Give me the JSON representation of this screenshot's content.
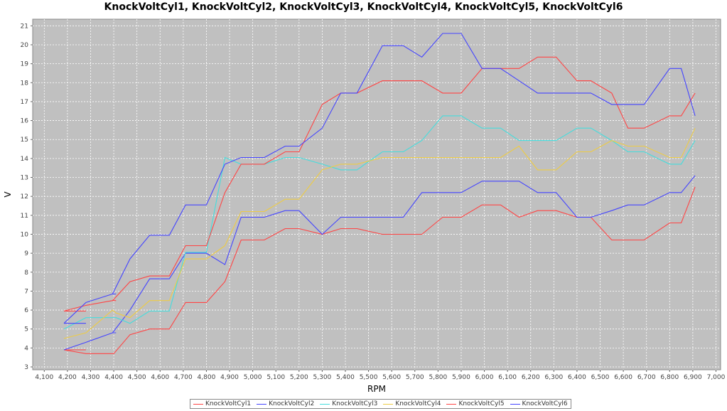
{
  "chart_data": {
    "type": "line",
    "title": "KnockVoltCyl1, KnockVoltCyl2, KnockVoltCyl3, KnockVoltCyl4, KnockVoltCyl5, KnockVoltCyl6",
    "xlabel": "RPM",
    "ylabel": "V",
    "xlim": [
      4050,
      7020
    ],
    "ylim": [
      2.85,
      21.35
    ],
    "xticks": [
      4100,
      4200,
      4300,
      4400,
      4500,
      4600,
      4700,
      4800,
      4900,
      5000,
      5100,
      5200,
      5300,
      5400,
      5500,
      5600,
      5700,
      5800,
      5900,
      6000,
      6100,
      6200,
      6300,
      6400,
      6500,
      6600,
      6700,
      6800,
      6900,
      7000
    ],
    "xtick_labels": [
      "4,100",
      "4,200",
      "4,300",
      "4,400",
      "4,500",
      "4,600",
      "4,700",
      "4,800",
      "4,900",
      "5,000",
      "5,100",
      "5,200",
      "5,300",
      "5,400",
      "5,500",
      "5,600",
      "5,700",
      "5,800",
      "5,900",
      "6,000",
      "6,100",
      "6,200",
      "6,300",
      "6,400",
      "6,500",
      "6,600",
      "6,700",
      "6,800",
      "6,900",
      "7,000"
    ],
    "yticks": [
      3,
      4,
      5,
      6,
      7,
      8,
      9,
      10,
      11,
      12,
      13,
      14,
      15,
      16,
      17,
      18,
      19,
      20,
      21
    ],
    "grid": true,
    "legend_position": "bottom",
    "background": "#c0c0c0",
    "series": [
      {
        "name": "KnockVoltCyl1",
        "color": "#ff4444",
        "points": [
          [
            4185,
            3.9
          ],
          [
            4280,
            3.9
          ]
        ]
      },
      {
        "name": "KnockVoltCyl1",
        "color": "#ff4444",
        "points": [
          [
            4185,
            3.9
          ],
          [
            4280,
            3.7
          ],
          [
            4400,
            3.7
          ],
          [
            4470,
            4.7
          ],
          [
            4555,
            5.0
          ],
          [
            4640,
            5.0
          ],
          [
            4710,
            6.4
          ],
          [
            4800,
            6.4
          ],
          [
            4880,
            7.5
          ],
          [
            4950,
            9.7
          ],
          [
            5050,
            9.7
          ],
          [
            5140,
            10.3
          ],
          [
            5200,
            10.3
          ],
          [
            5300,
            10.0
          ],
          [
            5380,
            10.3
          ],
          [
            5450,
            10.3
          ],
          [
            5560,
            10.0
          ],
          [
            5650,
            10.0
          ],
          [
            5730,
            10.0
          ],
          [
            5820,
            10.9
          ],
          [
            5900,
            10.9
          ],
          [
            5990,
            11.55
          ],
          [
            6070,
            11.55
          ],
          [
            6150,
            10.9
          ],
          [
            6230,
            11.25
          ],
          [
            6310,
            11.25
          ],
          [
            6400,
            10.9
          ],
          [
            6460,
            10.9
          ],
          [
            6550,
            9.7
          ],
          [
            6620,
            9.7
          ],
          [
            6690,
            9.7
          ],
          [
            6800,
            10.6
          ],
          [
            6850,
            10.6
          ],
          [
            6910,
            12.5
          ]
        ]
      },
      {
        "name": "KnockVoltCyl2",
        "color": "#4444ff",
        "points": [
          [
            4185,
            3.9
          ],
          [
            4280,
            4.3
          ],
          [
            4395,
            4.8
          ],
          [
            4410,
            4.8
          ]
        ]
      },
      {
        "name": "KnockVoltCyl2",
        "color": "#4444ff",
        "points": [
          [
            4395,
            4.8
          ],
          [
            4470,
            6.0
          ],
          [
            4555,
            7.65
          ],
          [
            4640,
            7.65
          ],
          [
            4710,
            9.0
          ],
          [
            4800,
            9.0
          ],
          [
            4880,
            8.4
          ],
          [
            4950,
            10.9
          ],
          [
            5050,
            10.9
          ],
          [
            5140,
            11.25
          ],
          [
            5200,
            11.25
          ],
          [
            5300,
            10.0
          ],
          [
            5380,
            10.9
          ],
          [
            5450,
            10.9
          ],
          [
            5560,
            10.9
          ],
          [
            5650,
            10.9
          ],
          [
            5730,
            12.2
          ],
          [
            5820,
            12.2
          ],
          [
            5900,
            12.2
          ],
          [
            5990,
            12.8
          ],
          [
            6070,
            12.8
          ],
          [
            6150,
            12.8
          ],
          [
            6230,
            12.2
          ],
          [
            6310,
            12.2
          ],
          [
            6400,
            10.9
          ],
          [
            6460,
            10.9
          ],
          [
            6550,
            11.25
          ],
          [
            6620,
            11.55
          ],
          [
            6690,
            11.55
          ],
          [
            6800,
            12.2
          ],
          [
            6850,
            12.2
          ],
          [
            6910,
            13.1
          ]
        ]
      },
      {
        "name": "KnockVoltCyl3",
        "color": "#44dddd",
        "points": [
          [
            4185,
            5.0
          ],
          [
            4280,
            5.6
          ],
          [
            4395,
            5.6
          ],
          [
            4410,
            5.6
          ],
          [
            4470,
            5.3
          ],
          [
            4555,
            5.95
          ],
          [
            4640,
            5.95
          ],
          [
            4710,
            9.05
          ],
          [
            4800,
            9.05
          ],
          [
            4880,
            14.05
          ],
          [
            4950,
            13.7
          ],
          [
            5050,
            13.7
          ],
          [
            5140,
            14.05
          ],
          [
            5200,
            14.05
          ],
          [
            5300,
            13.7
          ],
          [
            5380,
            13.4
          ],
          [
            5450,
            13.4
          ],
          [
            5560,
            14.35
          ],
          [
            5650,
            14.35
          ],
          [
            5730,
            14.95
          ],
          [
            5820,
            16.25
          ],
          [
            5900,
            16.25
          ],
          [
            5990,
            15.6
          ],
          [
            6070,
            15.6
          ],
          [
            6150,
            14.95
          ],
          [
            6230,
            14.95
          ],
          [
            6310,
            14.95
          ],
          [
            6400,
            15.6
          ],
          [
            6460,
            15.6
          ],
          [
            6550,
            14.95
          ],
          [
            6620,
            14.35
          ],
          [
            6690,
            14.35
          ],
          [
            6800,
            13.7
          ],
          [
            6850,
            13.7
          ],
          [
            6910,
            14.95
          ]
        ]
      },
      {
        "name": "KnockVoltCyl4",
        "color": "#eecc44",
        "points": [
          [
            4185,
            4.5
          ],
          [
            4280,
            4.8
          ],
          [
            4395,
            6.0
          ],
          [
            4410,
            5.85
          ],
          [
            4470,
            5.6
          ],
          [
            4555,
            6.5
          ],
          [
            4640,
            6.5
          ],
          [
            4710,
            8.7
          ],
          [
            4800,
            8.7
          ],
          [
            4880,
            9.4
          ],
          [
            4950,
            11.2
          ],
          [
            5050,
            11.2
          ],
          [
            5140,
            11.85
          ],
          [
            5200,
            11.85
          ],
          [
            5300,
            13.4
          ],
          [
            5380,
            13.7
          ],
          [
            5450,
            13.7
          ],
          [
            5560,
            14.05
          ],
          [
            5650,
            14.05
          ],
          [
            5730,
            14.05
          ],
          [
            5820,
            14.05
          ],
          [
            5900,
            14.05
          ],
          [
            5990,
            14.05
          ],
          [
            6070,
            14.05
          ],
          [
            6150,
            14.65
          ],
          [
            6230,
            13.4
          ],
          [
            6310,
            13.4
          ],
          [
            6400,
            14.35
          ],
          [
            6460,
            14.35
          ],
          [
            6550,
            14.95
          ],
          [
            6620,
            14.65
          ],
          [
            6690,
            14.65
          ],
          [
            6800,
            14.05
          ],
          [
            6850,
            14.05
          ],
          [
            6910,
            15.6
          ]
        ]
      },
      {
        "name": "KnockVoltCyl5",
        "color": "#ff4444",
        "points": [
          [
            4185,
            5.95
          ],
          [
            4280,
            5.95
          ]
        ]
      },
      {
        "name": "KnockVoltCyl5",
        "color": "#ff4444",
        "points": [
          [
            4185,
            5.95
          ],
          [
            4280,
            6.25
          ],
          [
            4395,
            6.5
          ],
          [
            4410,
            6.5
          ]
        ]
      },
      {
        "name": "KnockVoltCyl5",
        "color": "#ff4444",
        "points": [
          [
            4395,
            6.5
          ],
          [
            4470,
            7.5
          ],
          [
            4555,
            7.8
          ],
          [
            4640,
            7.8
          ],
          [
            4710,
            9.4
          ],
          [
            4800,
            9.4
          ],
          [
            4880,
            12.2
          ],
          [
            4950,
            13.7
          ],
          [
            5050,
            13.7
          ],
          [
            5140,
            14.35
          ],
          [
            5200,
            14.35
          ],
          [
            5300,
            16.85
          ],
          [
            5380,
            17.45
          ],
          [
            5450,
            17.45
          ],
          [
            5560,
            18.1
          ],
          [
            5650,
            18.1
          ],
          [
            5730,
            18.1
          ],
          [
            5820,
            17.45
          ],
          [
            5900,
            17.45
          ],
          [
            5990,
            18.75
          ],
          [
            6070,
            18.75
          ],
          [
            6150,
            18.75
          ],
          [
            6230,
            19.35
          ],
          [
            6310,
            19.35
          ],
          [
            6400,
            18.1
          ],
          [
            6460,
            18.1
          ],
          [
            6550,
            17.45
          ],
          [
            6620,
            15.6
          ],
          [
            6690,
            15.6
          ],
          [
            6800,
            16.25
          ],
          [
            6850,
            16.25
          ],
          [
            6910,
            17.45
          ]
        ]
      },
      {
        "name": "KnockVoltCyl6",
        "color": "#4444ff",
        "points": [
          [
            4185,
            5.3
          ],
          [
            4280,
            5.3
          ]
        ]
      },
      {
        "name": "KnockVoltCyl6",
        "color": "#4444ff",
        "points": [
          [
            4185,
            5.3
          ],
          [
            4280,
            6.4
          ],
          [
            4395,
            6.85
          ],
          [
            4410,
            6.85
          ]
        ]
      },
      {
        "name": "KnockVoltCyl6",
        "color": "#4444ff",
        "points": [
          [
            4395,
            6.85
          ],
          [
            4470,
            8.7
          ],
          [
            4555,
            9.95
          ],
          [
            4640,
            9.95
          ],
          [
            4710,
            11.55
          ],
          [
            4800,
            11.55
          ],
          [
            4880,
            13.7
          ],
          [
            4950,
            14.05
          ],
          [
            5050,
            14.05
          ],
          [
            5140,
            14.65
          ],
          [
            5200,
            14.65
          ],
          [
            5300,
            15.6
          ],
          [
            5380,
            17.45
          ],
          [
            5450,
            17.45
          ],
          [
            5560,
            19.95
          ],
          [
            5650,
            19.95
          ],
          [
            5730,
            19.35
          ],
          [
            5820,
            20.6
          ],
          [
            5900,
            20.6
          ],
          [
            5990,
            18.75
          ],
          [
            6070,
            18.75
          ],
          [
            6150,
            18.1
          ],
          [
            6230,
            17.45
          ],
          [
            6310,
            17.45
          ],
          [
            6400,
            17.45
          ],
          [
            6460,
            17.45
          ],
          [
            6550,
            16.85
          ],
          [
            6620,
            16.85
          ],
          [
            6690,
            16.85
          ],
          [
            6800,
            18.75
          ],
          [
            6850,
            18.75
          ],
          [
            6910,
            16.25
          ]
        ]
      }
    ],
    "legend": [
      {
        "name": "KnockVoltCyl1",
        "color": "#ff4444"
      },
      {
        "name": "KnockVoltCyl2",
        "color": "#4444ff"
      },
      {
        "name": "KnockVoltCyl3",
        "color": "#44dddd"
      },
      {
        "name": "KnockVoltCyl4",
        "color": "#eecc44"
      },
      {
        "name": "KnockVoltCyl5",
        "color": "#ff4444"
      },
      {
        "name": "KnockVoltCyl6",
        "color": "#4444ff"
      }
    ]
  }
}
